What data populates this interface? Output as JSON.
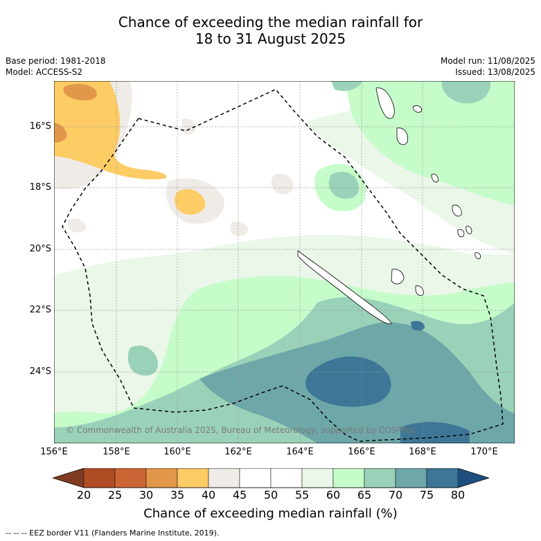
{
  "title": {
    "line1": "Chance of exceeding the median rainfall for",
    "line2": "18 to 31 August 2025"
  },
  "meta": {
    "base_period": "Base period: 1981-2018",
    "model": "Model: ACCESS-S2",
    "model_run": "Model run: 11/08/2025",
    "issued": "Issued: 13/08/2025"
  },
  "map": {
    "lat_labels": [
      "16°S",
      "18°S",
      "20°S",
      "22°S",
      "24°S"
    ],
    "lon_labels": [
      "156°E",
      "158°E",
      "160°E",
      "162°E",
      "164°E",
      "166°E",
      "168°E",
      "170°E"
    ],
    "copyright": "© Commonwealth of Australia 2025, Bureau of Meteorology, supported by COSPPac",
    "eez_color": "#000000",
    "land_outline_color": "#000000"
  },
  "colorbar": {
    "ticks": [
      "20",
      "25",
      "30",
      "35",
      "40",
      "45",
      "50",
      "55",
      "60",
      "65",
      "70",
      "75",
      "80"
    ],
    "colors": [
      "#7f3b21",
      "#b04d25",
      "#cc6535",
      "#e2984a",
      "#fdcc65",
      "#efebe6",
      "#ffffff",
      "#ffffff",
      "#eaf7e9",
      "#c6fcca",
      "#9ad2b9",
      "#6ea7a8",
      "#3d7696",
      "#1d4e7e"
    ],
    "label": "Chance of exceeding median rainfall (%)"
  },
  "footnote": "--  --  -- EEZ border V11 (Flanders Marine Institute, 2019)."
}
